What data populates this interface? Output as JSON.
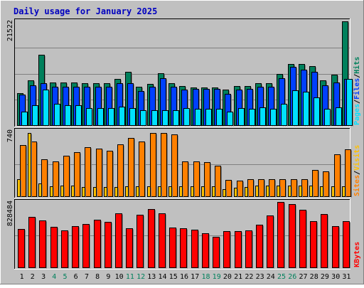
{
  "chart_data": {
    "type": "bar",
    "title": "Daily usage for January 2025",
    "categories": [
      "1",
      "2",
      "3",
      "4",
      "5",
      "6",
      "7",
      "8",
      "9",
      "10",
      "11",
      "12",
      "13",
      "14",
      "15",
      "16",
      "17",
      "18",
      "19",
      "20",
      "21",
      "22",
      "23",
      "24",
      "25",
      "26",
      "27",
      "28",
      "29",
      "30",
      "31"
    ],
    "weekend_days": [
      4,
      5,
      11,
      12,
      18,
      19,
      25,
      26
    ],
    "colors": {
      "hits": "#00805c",
      "files": "#0040ff",
      "pages": "#00e0ff",
      "visits": "#ffc000",
      "sites": "#ff8000",
      "kbytes": "#ff0000",
      "background": "#c0c0c0",
      "title": "#0000c0",
      "weekend_label": "#00805c",
      "weekday_label": "#000000"
    },
    "panels": [
      {
        "id": "hits",
        "max_label": "21522",
        "ylim": [
          0,
          21522
        ],
        "legend": [
          {
            "text": "Pages",
            "color": "#00e0ff"
          },
          {
            "text": "/",
            "color": "#000000"
          },
          {
            "text": "Files",
            "color": "#0040ff"
          },
          {
            "text": "/",
            "color": "#000000"
          },
          {
            "text": "Hits",
            "color": "#00805c"
          }
        ],
        "series": [
          {
            "name": "Hits",
            "values": [
              6800,
              9300,
              14600,
              8900,
              8900,
              9000,
              8800,
              8800,
              8800,
              9600,
              11100,
              8000,
              8700,
              10900,
              8800,
              8200,
              7900,
              7900,
              7900,
              7400,
              8200,
              8200,
              8800,
              8800,
              10700,
              12800,
              12800,
              12300,
              9300,
              10600,
              21500
            ]
          },
          {
            "name": "Files",
            "values": [
              6500,
              8300,
              8800,
              8000,
              8000,
              8000,
              8000,
              8000,
              8000,
              8800,
              8800,
              7200,
              8000,
              9800,
              8000,
              7400,
              7600,
              7600,
              7600,
              6600,
              7500,
              7600,
              8000,
              8000,
              9800,
              12100,
              11600,
              11100,
              8300,
              8900,
              9700
            ]
          },
          {
            "name": "Pages",
            "values": [
              3000,
              4200,
              7400,
              4500,
              4300,
              4300,
              3600,
              3600,
              3600,
              3900,
              3700,
              3200,
              3200,
              3200,
              3200,
              3600,
              3500,
              3500,
              3500,
              3000,
              3600,
              3500,
              3800,
              3500,
              4500,
              7300,
              7100,
              5900,
              3500,
              3800,
              9700
            ]
          }
        ]
      },
      {
        "id": "visits",
        "max_label": "740",
        "ylim": [
          0,
          740
        ],
        "legend": [
          {
            "text": "Sites",
            "color": "#ff8000"
          },
          {
            "text": "/",
            "color": "#000000"
          },
          {
            "text": "Visits",
            "color": "#ffc000"
          }
        ],
        "series": [
          {
            "name": "Visits",
            "values": [
              200,
              720,
              150,
              120,
              130,
              130,
              110,
              110,
              110,
              110,
              120,
              120,
              120,
              120,
              120,
              120,
              120,
              120,
              120,
              90,
              100,
              110,
              130,
              130,
              130,
              130,
              130,
              130,
              120,
              120,
              120
            ]
          },
          {
            "name": "Sites",
            "values": [
              580,
              620,
              420,
              400,
              460,
              500,
              560,
              540,
              520,
              590,
              660,
              620,
              720,
              720,
              700,
              400,
              400,
              390,
              350,
              190,
              180,
              200,
              200,
              200,
              200,
              200,
              200,
              300,
              290,
              480,
              530
            ]
          }
        ]
      },
      {
        "id": "kbytes",
        "max_label": "828484",
        "ylim": [
          0,
          828484
        ],
        "legend": [
          {
            "text": "KBytes",
            "color": "#ff0000"
          }
        ],
        "series": [
          {
            "name": "KBytes",
            "values": [
              490000,
              640000,
              600000,
              520000,
              470000,
              530000,
              550000,
              610000,
              580000,
              690000,
              500000,
              670000,
              740000,
              690000,
              510000,
              500000,
              480000,
              440000,
              390000,
              460000,
              460000,
              470000,
              540000,
              660000,
              828484,
              800000,
              730000,
              590000,
              680000,
              530000,
              590000
            ]
          }
        ]
      }
    ]
  }
}
